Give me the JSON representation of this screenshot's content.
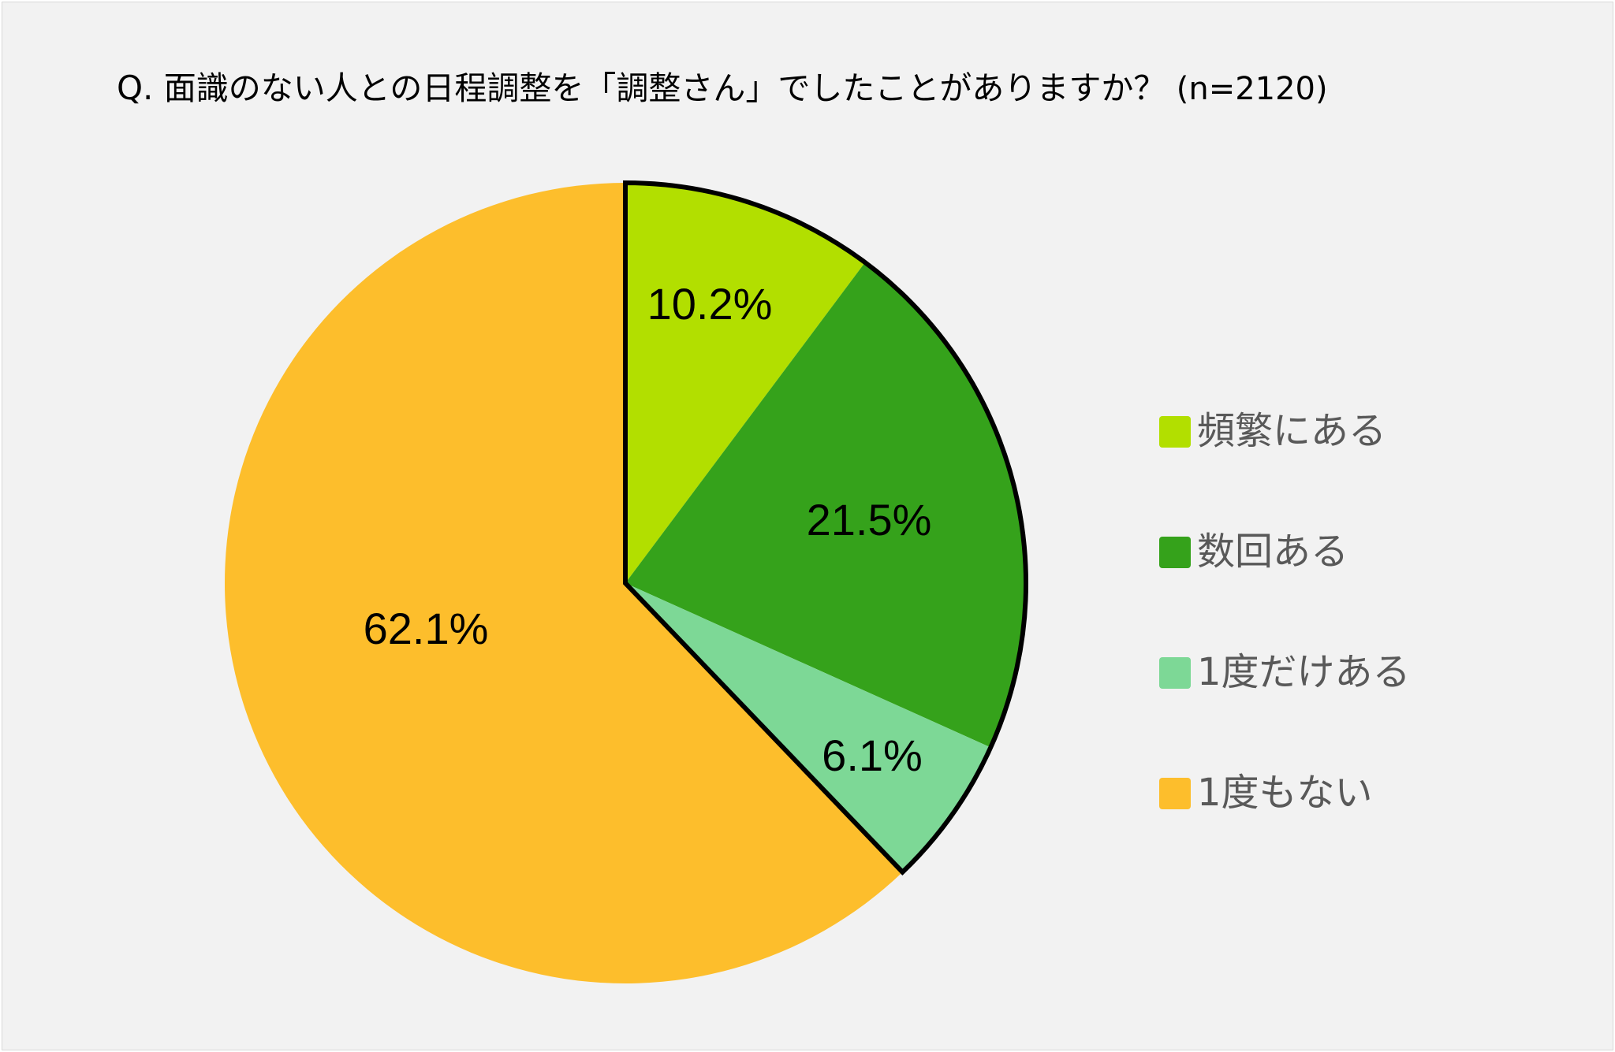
{
  "chart_data": {
    "type": "pie",
    "title": {
      "prefix": "Q.",
      "text": "面識のない人との日程調整を「調整さん」でしたことがありますか？",
      "n": "(n=2120)"
    },
    "slices": [
      {
        "label": "頻繁にある",
        "value": 10.2,
        "display": "10.2%",
        "color": "#b2df00",
        "outlined": true
      },
      {
        "label": "数回ある",
        "value": 21.5,
        "display": "21.5%",
        "color": "#35a21b",
        "outlined": true
      },
      {
        "label": "1度だけある",
        "value": 6.1,
        "display": "6.1%",
        "color": "#7dd896",
        "outlined": true
      },
      {
        "label": "1度もない",
        "value": 62.1,
        "display": "62.1%",
        "color": "#fdbe2c",
        "outlined": false
      }
    ],
    "legend_position": "right",
    "start_angle": "top, clockwise"
  }
}
